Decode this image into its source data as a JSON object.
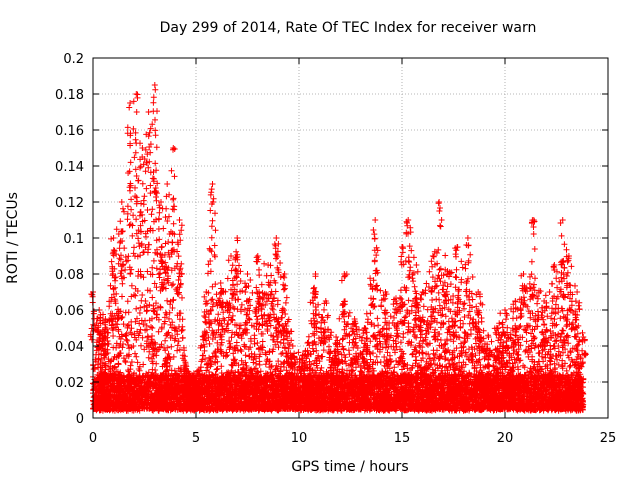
{
  "chart_data": {
    "type": "scatter",
    "title": "Day 299 of 2014, Rate Of TEC Index for receiver warn",
    "xlabel": "GPS time / hours",
    "ylabel": "ROTI / TECUs",
    "xlim": [
      0,
      25
    ],
    "ylim": [
      0,
      0.2
    ],
    "xticks": [
      0,
      5,
      10,
      15,
      20,
      25
    ],
    "yticks": [
      0,
      0.02,
      0.04,
      0.06,
      0.08,
      0.1,
      0.12,
      0.14,
      0.16,
      0.18,
      0.2
    ],
    "xtick_labels": [
      "0",
      "5",
      "10",
      "15",
      "20",
      "25"
    ],
    "ytick_labels": [
      "0",
      "0.02",
      "0.04",
      "0.06",
      "0.08",
      "0.1",
      "0.12",
      "0.14",
      "0.16",
      "0.18",
      "0.2"
    ],
    "grid": true,
    "marker": "+",
    "series_color": "#ff0000",
    "series": [
      {
        "envelope_note": "upper envelope of the dense cloud; points fill from ~0.005 up to these values",
        "x": [
          0.0,
          0.3,
          0.6,
          1.0,
          1.4,
          1.8,
          2.1,
          2.4,
          2.7,
          3.0,
          3.3,
          3.6,
          3.9,
          4.2,
          4.5,
          5.0,
          5.5,
          5.8,
          6.2,
          6.7,
          7.0,
          7.5,
          8.0,
          8.5,
          8.9,
          9.3,
          9.7,
          10.2,
          10.8,
          11.3,
          11.8,
          12.2,
          12.7,
          13.2,
          13.7,
          14.2,
          14.7,
          15.0,
          15.3,
          15.7,
          16.0,
          16.5,
          16.8,
          17.2,
          17.7,
          18.2,
          18.7,
          19.2,
          19.6,
          20.0,
          20.5,
          20.9,
          21.4,
          21.9,
          22.4,
          22.8,
          23.1,
          23.5,
          23.8
        ],
        "y": [
          0.07,
          0.06,
          0.055,
          0.1,
          0.12,
          0.175,
          0.18,
          0.15,
          0.17,
          0.185,
          0.12,
          0.13,
          0.15,
          0.11,
          0.03,
          0.02,
          0.07,
          0.13,
          0.075,
          0.09,
          0.1,
          0.08,
          0.09,
          0.085,
          0.1,
          0.08,
          0.04,
          0.035,
          0.08,
          0.065,
          0.045,
          0.08,
          0.055,
          0.05,
          0.11,
          0.07,
          0.065,
          0.095,
          0.11,
          0.085,
          0.07,
          0.09,
          0.12,
          0.08,
          0.095,
          0.1,
          0.07,
          0.045,
          0.05,
          0.06,
          0.065,
          0.08,
          0.11,
          0.065,
          0.085,
          0.11,
          0.09,
          0.07,
          0.045
        ]
      }
    ]
  }
}
